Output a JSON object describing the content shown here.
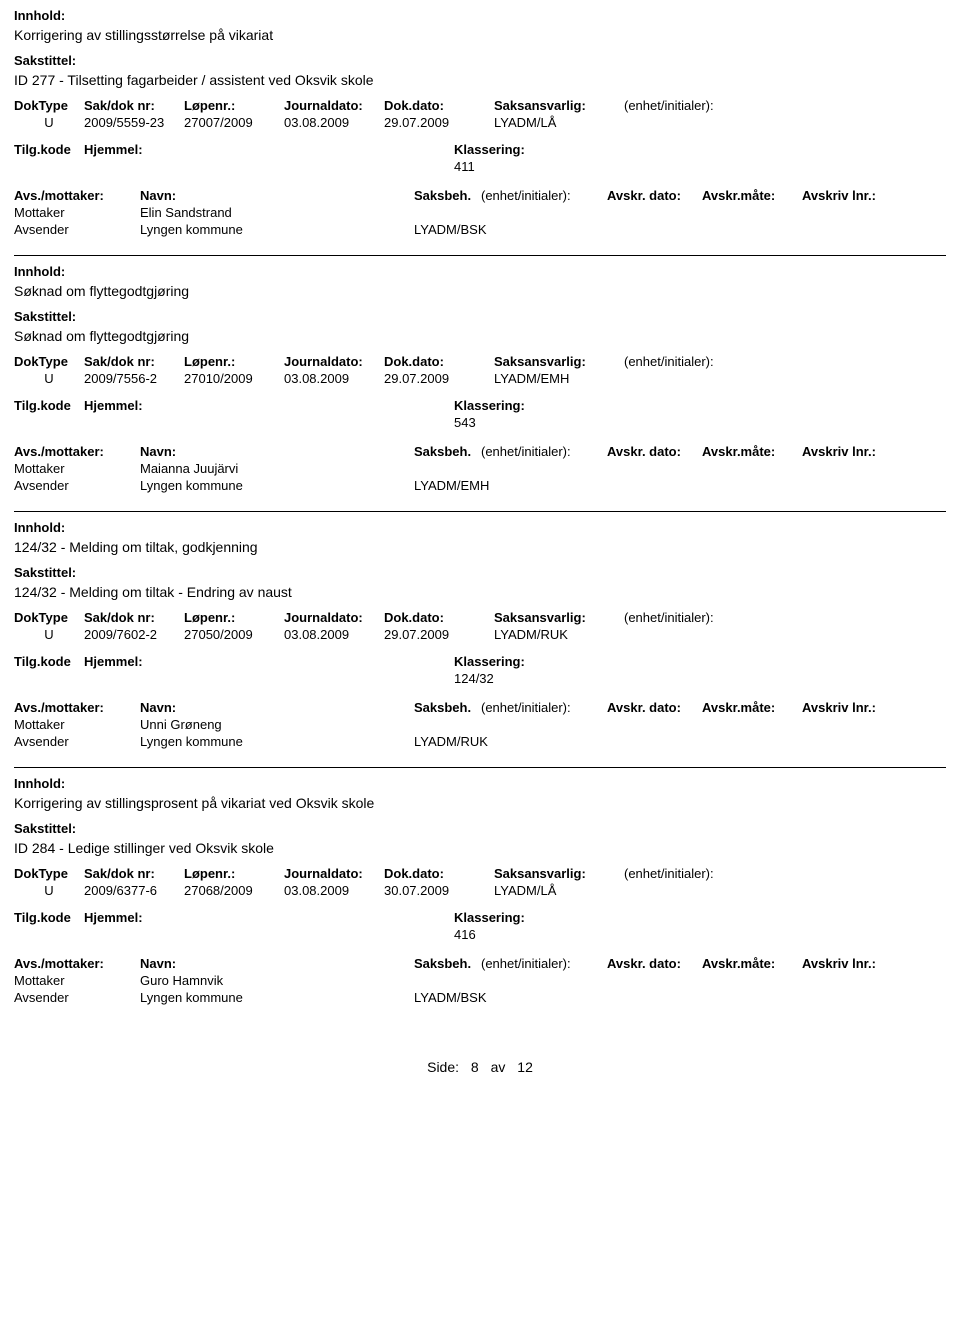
{
  "labels": {
    "innhold": "Innhold:",
    "sakstittel": "Sakstittel:",
    "doktype": "DokType",
    "sakdok": "Sak/dok nr:",
    "lopenr": "Løpenr.:",
    "journaldato": "Journaldato:",
    "dokdato": "Dok.dato:",
    "saksansvarlig": "Saksansvarlig:",
    "enhet_init": "(enhet/initialer):",
    "tilgkode": "Tilg.kode",
    "hjemmel": "Hjemmel:",
    "klassering": "Klassering:",
    "avs_mottaker": "Avs./mottaker:",
    "navn": "Navn:",
    "saksbeh": "Saksbeh.",
    "avskr_dato": "Avskr. dato:",
    "avskr_mate": "Avskr.måte:",
    "avskriv_lnr": "Avskriv lnr.:",
    "side": "Side:",
    "av": "av"
  },
  "records": [
    {
      "innhold": "Korrigering av stillingsstørrelse på vikariat",
      "sakstittel": "ID 277 - Tilsetting fagarbeider / assistent ved Oksvik skole",
      "doktype": "U",
      "sakdok": "2009/5559-23",
      "lopenr": "27007/2009",
      "journaldato": "03.08.2009",
      "dokdato": "29.07.2009",
      "saksansvarlig": "LYADM/LÅ",
      "klassering": "411",
      "corr": [
        {
          "role": "Mottaker",
          "navn": "Elin Sandstrand",
          "saksbeh": ""
        },
        {
          "role": "Avsender",
          "navn": "Lyngen kommune",
          "saksbeh": "LYADM/BSK"
        }
      ]
    },
    {
      "innhold": "Søknad om flyttegodtgjøring",
      "sakstittel": "Søknad om flyttegodtgjøring",
      "doktype": "U",
      "sakdok": "2009/7556-2",
      "lopenr": "27010/2009",
      "journaldato": "03.08.2009",
      "dokdato": "29.07.2009",
      "saksansvarlig": "LYADM/EMH",
      "klassering": "543",
      "corr": [
        {
          "role": "Mottaker",
          "navn": "Maianna Juujärvi",
          "saksbeh": ""
        },
        {
          "role": "Avsender",
          "navn": "Lyngen kommune",
          "saksbeh": "LYADM/EMH"
        }
      ]
    },
    {
      "innhold": "124/32 - Melding om tiltak, godkjenning",
      "sakstittel": "124/32 - Melding om tiltak - Endring av naust",
      "doktype": "U",
      "sakdok": "2009/7602-2",
      "lopenr": "27050/2009",
      "journaldato": "03.08.2009",
      "dokdato": "29.07.2009",
      "saksansvarlig": "LYADM/RUK",
      "klassering": "124/32",
      "corr": [
        {
          "role": "Mottaker",
          "navn": "Unni Grøneng",
          "saksbeh": ""
        },
        {
          "role": "Avsender",
          "navn": "Lyngen kommune",
          "saksbeh": "LYADM/RUK"
        }
      ]
    },
    {
      "innhold": "Korrigering av stillingsprosent på vikariat ved Oksvik skole",
      "sakstittel": "ID 284 - Ledige stillinger ved Oksvik skole",
      "doktype": "U",
      "sakdok": "2009/6377-6",
      "lopenr": "27068/2009",
      "journaldato": "03.08.2009",
      "dokdato": "30.07.2009",
      "saksansvarlig": "LYADM/LÅ",
      "klassering": "416",
      "corr": [
        {
          "role": "Mottaker",
          "navn": "Guro Hamnvik",
          "saksbeh": ""
        },
        {
          "role": "Avsender",
          "navn": "Lyngen kommune",
          "saksbeh": "LYADM/BSK"
        }
      ]
    }
  ],
  "page": {
    "current": "8",
    "total": "12"
  }
}
